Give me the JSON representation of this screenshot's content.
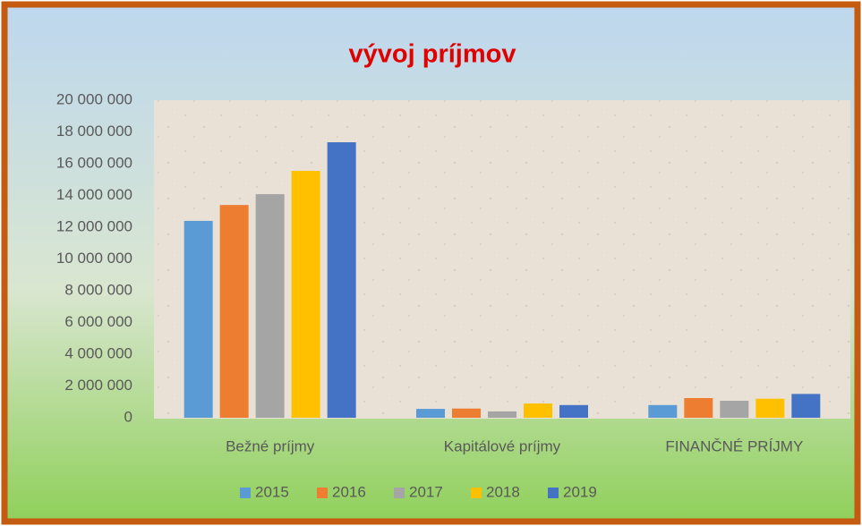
{
  "chart_data": {
    "type": "bar",
    "title": "vývoj príjmov",
    "categories": [
      "Bežné príjmy",
      "Kapitálové príjmy",
      "FINANČNÉ PRÍJMY"
    ],
    "series": [
      {
        "name": "2015",
        "color": "#5b9bd5",
        "values": [
          12400000,
          560000,
          800000
        ]
      },
      {
        "name": "2016",
        "color": "#ed7d31",
        "values": [
          13400000,
          580000,
          1240000
        ]
      },
      {
        "name": "2017",
        "color": "#a5a5a5",
        "values": [
          14080000,
          400000,
          1070000
        ]
      },
      {
        "name": "2018",
        "color": "#ffc000",
        "values": [
          15550000,
          900000,
          1200000
        ]
      },
      {
        "name": "2019",
        "color": "#4472c4",
        "values": [
          17350000,
          800000,
          1500000
        ]
      }
    ],
    "ylim": [
      0,
      20000000
    ],
    "yticks": [
      0,
      {
        "value": 2000000,
        "label": "2 000 000"
      },
      {
        "value": 4000000,
        "label": "4 000 000"
      },
      {
        "value": 6000000,
        "label": "6 000 000"
      },
      {
        "value": 8000000,
        "label": "8 000 000"
      },
      {
        "value": 10000000,
        "label": "10 000 000"
      },
      {
        "value": 12000000,
        "label": "12 000 000"
      },
      {
        "value": 14000000,
        "label": "14 000 000"
      },
      {
        "value": 16000000,
        "label": "16 000 000"
      },
      {
        "value": 18000000,
        "label": "18 000 000"
      },
      {
        "value": 20000000,
        "label": "20 000 000"
      }
    ],
    "grid": false,
    "legend": "bottom"
  }
}
